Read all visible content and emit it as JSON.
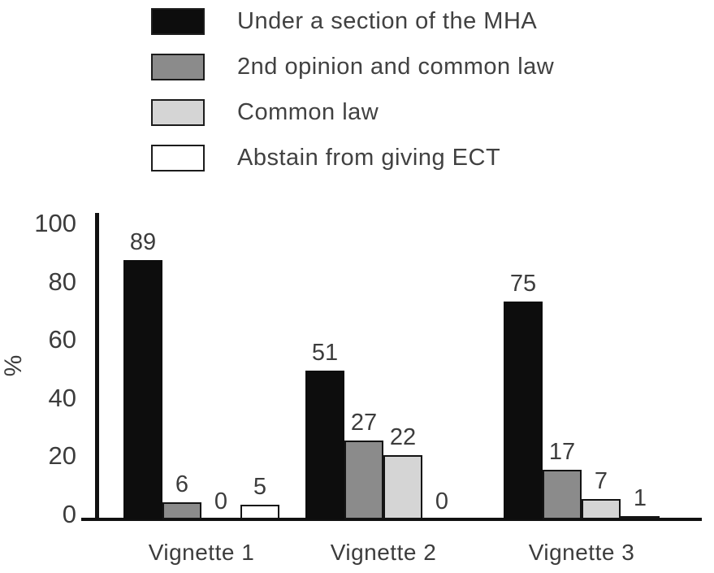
{
  "chart_data": {
    "type": "bar",
    "title": "",
    "xlabel": "",
    "ylabel": "%",
    "categories": [
      "Vignette 1",
      "Vignette 2",
      "Vignette 3"
    ],
    "series": [
      {
        "name": "Under a section of the MHA",
        "color": "#0d0d0d",
        "values": [
          89,
          51,
          75
        ]
      },
      {
        "name": "2nd opinion and common law",
        "color": "#8b8b8b",
        "values": [
          6,
          27,
          17
        ]
      },
      {
        "name": "Common law",
        "color": "#d5d5d5",
        "values": [
          0,
          22,
          7
        ]
      },
      {
        "name": "Abstain from giving ECT",
        "color": "#ffffff",
        "values": [
          5,
          0,
          1
        ]
      }
    ],
    "yticks": [
      0,
      20,
      40,
      60,
      80,
      100
    ],
    "ylim": [
      0,
      100
    ],
    "grid": false,
    "legend_position": "top",
    "bar_labels_shown": true,
    "zero_value_bars_drawn_as_label_only": true
  }
}
